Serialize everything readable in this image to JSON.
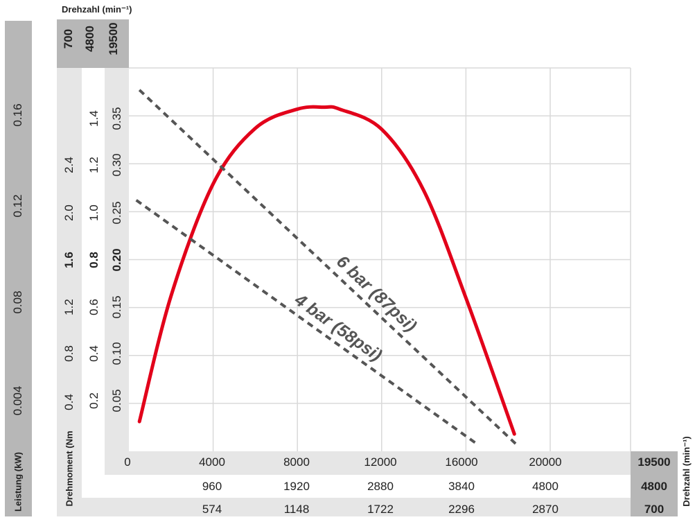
{
  "colors": {
    "curve": "#e2001a",
    "dashed": "#555555",
    "grid": "#d9d9d9",
    "band_dark": "#b7b7b7",
    "band_light": "#e6e6e6"
  },
  "labels": {
    "top_axis_title": "Drehzahl (min⁻¹)",
    "right_axis_title": "Drehzahl (min⁻¹)",
    "power_title": "Leistung (kW)",
    "torque_title": "Drehmoment (Nm"
  },
  "top_speed_values": [
    "700",
    "4800",
    "19500"
  ],
  "right_speed_values": [
    "19500",
    "4800",
    "700"
  ],
  "chart_data": {
    "type": "line",
    "x_axes": [
      {
        "name": "19500",
        "ticks": [
          "0",
          "4000",
          "8000",
          "12000",
          "16000",
          "20000"
        ]
      },
      {
        "name": "4800",
        "ticks": [
          "960",
          "1920",
          "2880",
          "3840",
          "4800"
        ]
      },
      {
        "name": "700",
        "ticks": [
          "574",
          "1148",
          "1722",
          "2296",
          "2870"
        ]
      }
    ],
    "y_axes": [
      {
        "name": "Leistung (kW)",
        "ticks": [
          "0.004",
          "0.08",
          "0.12",
          "0.16"
        ]
      },
      {
        "name": "Drehmoment (Nm)",
        "ticks": [
          "0.4",
          "0.8",
          "1.2",
          "1.6",
          "2.0",
          "2.4"
        ]
      },
      {
        "name": "Drehmoment (Nm)",
        "ticks": [
          "0.2",
          "0.4",
          "0.6",
          "0.8",
          "1.0",
          "1.2",
          "1.4"
        ]
      },
      {
        "name": "Drehmoment (Nm)",
        "ticks": [
          "0.05",
          "0.10",
          "0.15",
          "0.20",
          "0.25",
          "0.30",
          "0.35"
        ]
      }
    ],
    "bold_y_ticks": [
      "1.6",
      "0.8",
      "0.20"
    ],
    "xlim": [
      0,
      20000
    ],
    "ylim": [
      0,
      0.4
    ],
    "grid": true,
    "series": [
      {
        "kind": "power",
        "x": [
          500,
          2000,
          4000,
          6000,
          8000,
          9300,
          10000,
          12000,
          14000,
          16000,
          18300
        ],
        "y": [
          0.031,
          0.162,
          0.279,
          0.337,
          0.357,
          0.359,
          0.357,
          0.336,
          0.272,
          0.16,
          0.018
        ]
      },
      {
        "name": "6 bar (87psi)",
        "kind": "torque",
        "x": [
          500,
          18500
        ],
        "y": [
          0.377,
          0.005
        ]
      },
      {
        "name": "4 bar (58psi)",
        "kind": "torque",
        "x": [
          350,
          16500
        ],
        "y": [
          0.262,
          0.008
        ]
      }
    ]
  }
}
